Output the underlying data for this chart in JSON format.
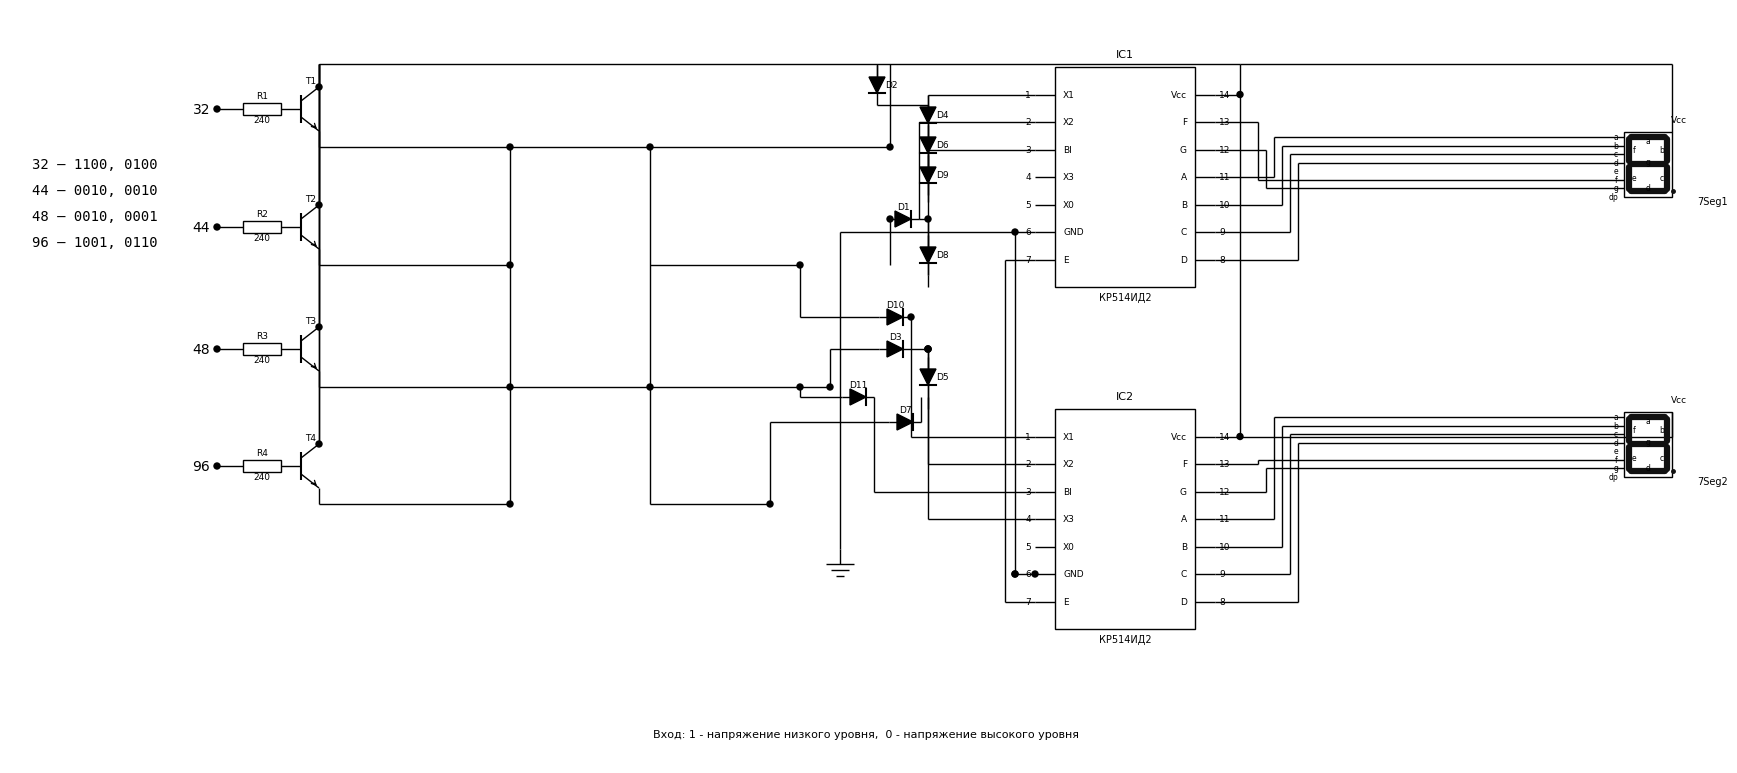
{
  "bg_color": "#ffffff",
  "lc": "#000000",
  "bottom_text": "Вход: 1 - напряжение низкого уровня,  0 - напряжение высокого уровня",
  "info_lines": [
    "32 – 1100, 0100",
    "44 – 0010, 0010",
    "48 – 0010, 0001",
    "96 – 1001, 0110"
  ],
  "input_labels": [
    "32",
    "44",
    "48",
    "96"
  ],
  "resistor_labels": [
    "R1",
    "R2",
    "R3",
    "R4"
  ],
  "resistor_values": [
    "240",
    "240",
    "240",
    "240"
  ],
  "transistor_labels": [
    "T1",
    "T2",
    "T3",
    "T4"
  ],
  "ic1_label": "IC1",
  "ic2_label": "IC2",
  "ic_sublabel": "КР514ИД2",
  "ic_left_pins": [
    "X1",
    "X2",
    "BI",
    "X3",
    "X0",
    "GND",
    "E"
  ],
  "ic_left_nums": [
    "1",
    "2",
    "3",
    "4",
    "5",
    "6",
    "7"
  ],
  "ic_right_pins": [
    "Vcc",
    "F",
    "G",
    "A",
    "B",
    "C",
    "D"
  ],
  "ic_right_nums": [
    "14",
    "13",
    "12",
    "11",
    "10",
    "9",
    "8"
  ],
  "seg1_label": "7Seg1",
  "seg2_label": "7Seg2",
  "vcc_label": "Vcc",
  "seg_side_labels": [
    "a",
    "b",
    "c",
    "d",
    "e",
    "f",
    "g",
    "dp"
  ],
  "diodes_upper": [
    "D2",
    "D4",
    "D6",
    "D9",
    "D1",
    "D8"
  ],
  "diodes_lower": [
    "D10",
    "D3",
    "D5",
    "D11",
    "D7"
  ]
}
